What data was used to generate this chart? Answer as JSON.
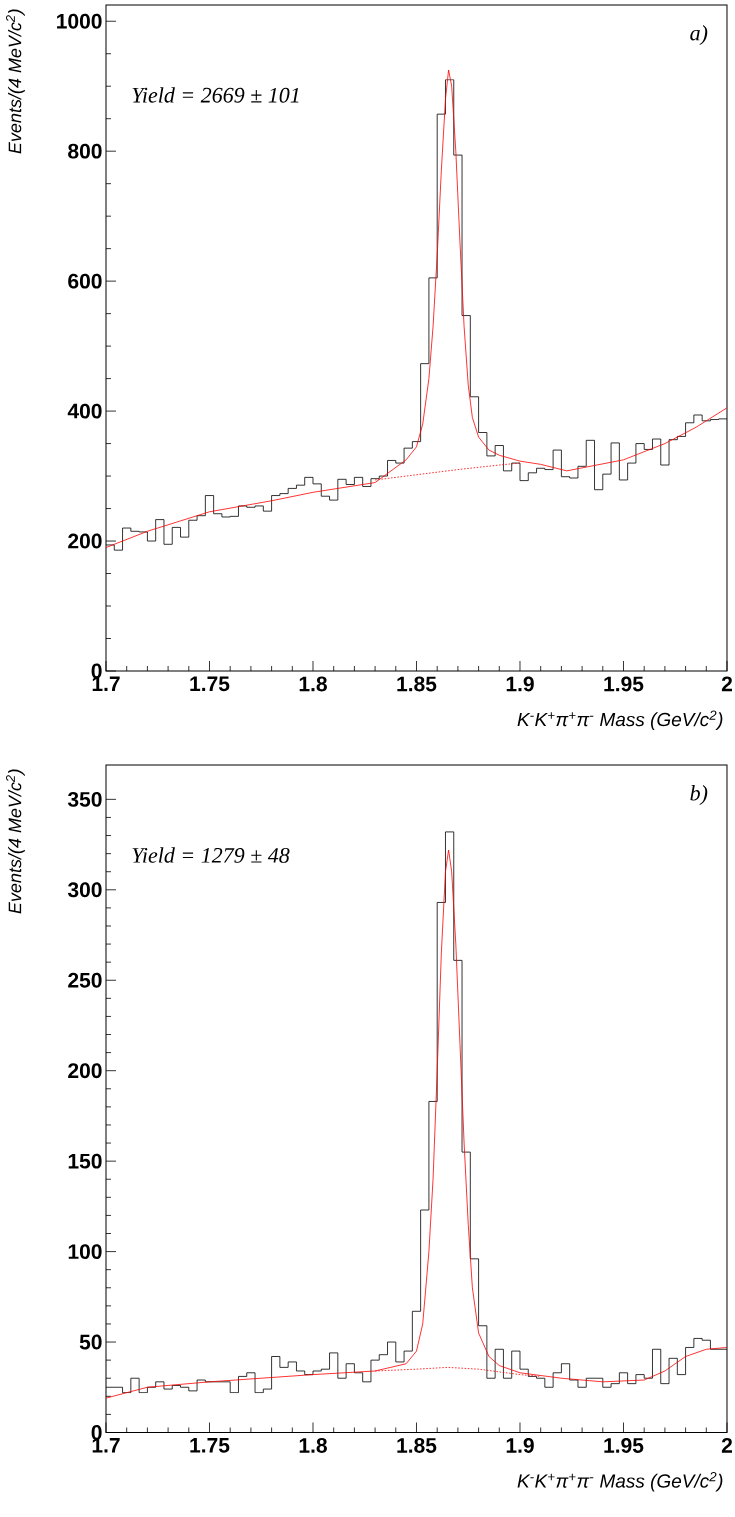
{
  "chart_data": [
    {
      "type": "histogram",
      "xlabel": "K$^{-}$K$^{+}$π$^{+}$π$^{-}$     Mass   (GeV/c$^{2}$)",
      "ylabel": "Events/(4 MeV/c$^{2}$)",
      "annotations": [
        "Yield = 2669 ± 101",
        "a)"
      ],
      "xlim": [
        1.7,
        2.0
      ],
      "ylim": [
        0,
        1025
      ],
      "xticks": [
        1.7,
        1.75,
        1.8,
        1.85,
        1.9,
        1.95,
        2
      ],
      "yticks": [
        0,
        200,
        400,
        600,
        800,
        1000
      ],
      "bins": [
        1.7,
        1.704,
        1.708,
        1.712,
        1.716,
        1.72,
        1.724,
        1.728,
        1.732,
        1.736,
        1.74,
        1.744,
        1.748,
        1.752,
        1.756,
        1.76,
        1.764,
        1.768,
        1.772,
        1.776,
        1.78,
        1.784,
        1.788,
        1.792,
        1.796,
        1.8,
        1.804,
        1.808,
        1.812,
        1.816,
        1.82,
        1.824,
        1.828,
        1.832,
        1.836,
        1.84,
        1.844,
        1.848,
        1.852,
        1.856,
        1.86,
        1.864,
        1.868,
        1.872,
        1.876,
        1.88,
        1.884,
        1.888,
        1.892,
        1.896,
        1.9,
        1.904,
        1.908,
        1.912,
        1.916,
        1.92,
        1.924,
        1.928,
        1.932,
        1.936,
        1.94,
        1.944,
        1.948,
        1.952,
        1.956,
        1.96,
        1.964,
        1.968,
        1.972,
        1.976,
        1.98,
        1.984,
        1.988,
        1.992,
        1.996,
        2.0
      ],
      "series": [
        {
          "color": "#000000",
          "values": [
            194,
            186,
            220,
            215,
            214,
            200,
            233,
            195,
            221,
            206,
            232,
            239,
            270,
            242,
            237,
            238,
            254,
            252,
            254,
            246,
            270,
            273,
            281,
            286,
            298,
            288,
            269,
            263,
            295,
            287,
            298,
            284,
            296,
            300,
            324,
            320,
            343,
            353,
            473,
            605,
            857,
            910,
            794,
            547,
            422,
            367,
            331,
            347,
            308,
            320,
            293,
            305,
            312,
            310,
            340,
            299,
            297,
            315,
            355,
            279,
            303,
            351,
            294,
            320,
            350,
            341,
            357,
            317,
            356,
            361,
            382,
            394,
            385,
            387,
            388
          ]
        },
        {
          "type": "line",
          "color": "#ff0000",
          "x": [
            1.7,
            1.72,
            1.75,
            1.78,
            1.8,
            1.83,
            1.845,
            1.85,
            1.853,
            1.856,
            1.858,
            1.86,
            1.862,
            1.864,
            1.8655,
            1.867,
            1.869,
            1.871,
            1.873,
            1.875,
            1.877,
            1.88,
            1.885,
            1.89,
            1.9,
            1.91,
            1.9226,
            1.95,
            1.97,
            1.985,
            2.0
          ],
          "values": [
            190,
            215,
            245,
            262,
            275,
            290,
            325,
            345,
            380,
            450,
            530,
            640,
            770,
            880,
            925,
            900,
            800,
            660,
            530,
            440,
            390,
            360,
            340,
            332,
            323,
            318,
            308,
            325,
            350,
            375,
            405
          ]
        },
        {
          "type": "line",
          "color": "#ff0000",
          "line_style": "dotted",
          "x": [
            1.83,
            1.85,
            1.87,
            1.89,
            1.9
          ],
          "values": [
            294,
            302,
            310,
            317,
            320
          ]
        }
      ]
    },
    {
      "type": "histogram",
      "xlabel": "K$^{-}$K$^{+}$π$^{+}$π$^{-}$     Mass   (GeV/c$^{2}$)",
      "ylabel": "Events/(4 MeV/c$^{2}$)",
      "annotations": [
        "Yield = 1279 ± 48",
        "b)"
      ],
      "xlim": [
        1.7,
        2.0
      ],
      "ylim": [
        0,
        369
      ],
      "xticks": [
        1.7,
        1.75,
        1.8,
        1.85,
        1.9,
        1.95,
        2
      ],
      "yticks": [
        0,
        50,
        100,
        150,
        200,
        250,
        300,
        350
      ],
      "bins": [
        1.7,
        1.704,
        1.708,
        1.712,
        1.716,
        1.72,
        1.724,
        1.728,
        1.732,
        1.736,
        1.74,
        1.744,
        1.748,
        1.752,
        1.756,
        1.76,
        1.764,
        1.768,
        1.772,
        1.776,
        1.78,
        1.784,
        1.788,
        1.792,
        1.796,
        1.8,
        1.804,
        1.808,
        1.812,
        1.816,
        1.82,
        1.824,
        1.828,
        1.832,
        1.836,
        1.84,
        1.844,
        1.848,
        1.852,
        1.856,
        1.86,
        1.864,
        1.868,
        1.872,
        1.876,
        1.88,
        1.884,
        1.888,
        1.892,
        1.896,
        1.9,
        1.904,
        1.908,
        1.912,
        1.916,
        1.92,
        1.924,
        1.928,
        1.932,
        1.936,
        1.94,
        1.944,
        1.948,
        1.952,
        1.956,
        1.96,
        1.964,
        1.968,
        1.972,
        1.976,
        1.98,
        1.984,
        1.988,
        1.992,
        1.996,
        2.0
      ],
      "series": [
        {
          "color": "#000000",
          "values": [
            25,
            25,
            22,
            30,
            22,
            25,
            28,
            24,
            26,
            25,
            23,
            29,
            28,
            28,
            28,
            22,
            31,
            33,
            22,
            24,
            42,
            36,
            39,
            34,
            32,
            34,
            35,
            44,
            30,
            38,
            33,
            28,
            40,
            43,
            50,
            39,
            45,
            67,
            123,
            183,
            293,
            332,
            261,
            155,
            96,
            59,
            30,
            46,
            30,
            45,
            35,
            31,
            30,
            25,
            33,
            38,
            29,
            25,
            30,
            30,
            25,
            27,
            33,
            27,
            32,
            30,
            46,
            27,
            41,
            32,
            47,
            52,
            51,
            46,
            46
          ]
        },
        {
          "type": "line",
          "color": "#ff0000",
          "x": [
            1.7,
            1.72,
            1.75,
            1.8,
            1.83,
            1.845,
            1.85,
            1.853,
            1.856,
            1.858,
            1.86,
            1.862,
            1.864,
            1.8655,
            1.867,
            1.869,
            1.871,
            1.873,
            1.875,
            1.877,
            1.88,
            1.885,
            1.89,
            1.9,
            1.92,
            1.94,
            1.96,
            1.97,
            1.98,
            1.99,
            2.0
          ],
          "values": [
            19,
            25,
            28,
            32,
            34,
            38,
            45,
            60,
            100,
            140,
            200,
            265,
            310,
            322,
            310,
            270,
            215,
            160,
            115,
            80,
            55,
            42,
            37,
            33,
            30,
            28,
            29,
            34,
            42,
            46,
            47
          ]
        },
        {
          "type": "line",
          "color": "#ff0000",
          "line_style": "dotted",
          "x": [
            1.83,
            1.85,
            1.865,
            1.88,
            1.9,
            1.91
          ],
          "values": [
            34,
            35,
            36,
            35,
            32,
            31
          ]
        }
      ]
    }
  ]
}
